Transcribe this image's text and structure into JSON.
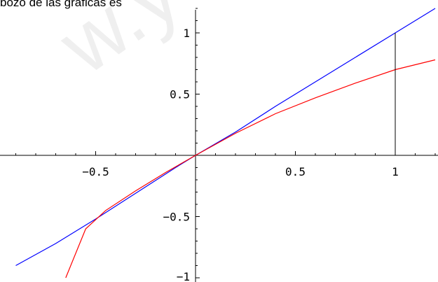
{
  "caption": "bozo de las gráficas es",
  "watermark": "w.yoq",
  "chart_data": {
    "type": "line",
    "xlim": [
      -0.95,
      1.2
    ],
    "ylim": [
      -1.0,
      1.2
    ],
    "x_ticks": [
      -0.5,
      0.5,
      1
    ],
    "x_tick_labels": [
      "−0.5",
      "0.5",
      "1"
    ],
    "y_ticks": [
      -1,
      -0.5,
      0.5,
      1
    ],
    "y_tick_labels": [
      "−1",
      "−0.5",
      "0.5",
      "1"
    ],
    "grid": false,
    "series": [
      {
        "color": "#0000ff",
        "x": [
          -0.9,
          -0.7,
          -0.5,
          -0.3,
          -0.1,
          0,
          0.2,
          0.4,
          0.6,
          0.8,
          1.0,
          1.1,
          1.2
        ],
        "y": [
          -0.9,
          -0.72,
          -0.52,
          -0.31,
          -0.1,
          0,
          0.19,
          0.4,
          0.6,
          0.8,
          1.0,
          1.1,
          1.2
        ]
      },
      {
        "color": "#ff0000",
        "x": [
          -0.65,
          -0.55,
          -0.45,
          -0.3,
          -0.15,
          0,
          0.2,
          0.4,
          0.6,
          0.8,
          1.0,
          1.2
        ],
        "y": [
          -1.0,
          -0.6,
          -0.45,
          -0.29,
          -0.14,
          0,
          0.18,
          0.34,
          0.47,
          0.59,
          0.7,
          0.78
        ]
      }
    ],
    "reference_line": {
      "x": 1,
      "y0": 0,
      "y1": 1,
      "color": "#000000"
    }
  }
}
